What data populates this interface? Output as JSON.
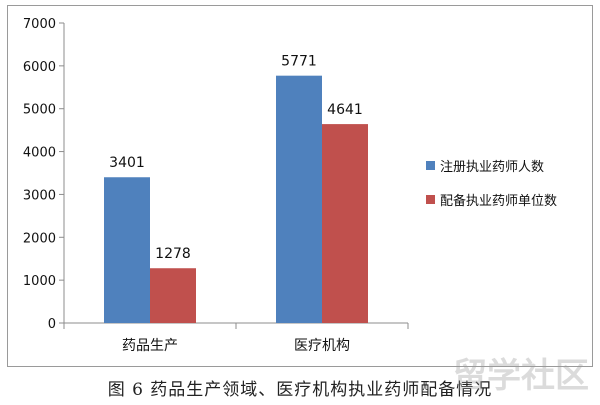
{
  "chart_data": {
    "type": "bar",
    "categories": [
      "药品生产",
      "医疗机构"
    ],
    "series": [
      {
        "name": "注册执业药师人数",
        "values": [
          3401,
          5771
        ],
        "color": "#4f81bd"
      },
      {
        "name": "配备执业药师单位数",
        "values": [
          1278,
          4641
        ],
        "color": "#c0504d"
      }
    ],
    "ylim": [
      0,
      7000
    ],
    "yticks": [
      0,
      1000,
      2000,
      3000,
      4000,
      5000,
      6000,
      7000
    ],
    "grid": false,
    "legend_position": "right",
    "data_labels": true
  },
  "caption": "图 6 药品生产领域、医疗机构执业药师配备情况",
  "watermark": {
    "text": "留学社区"
  }
}
